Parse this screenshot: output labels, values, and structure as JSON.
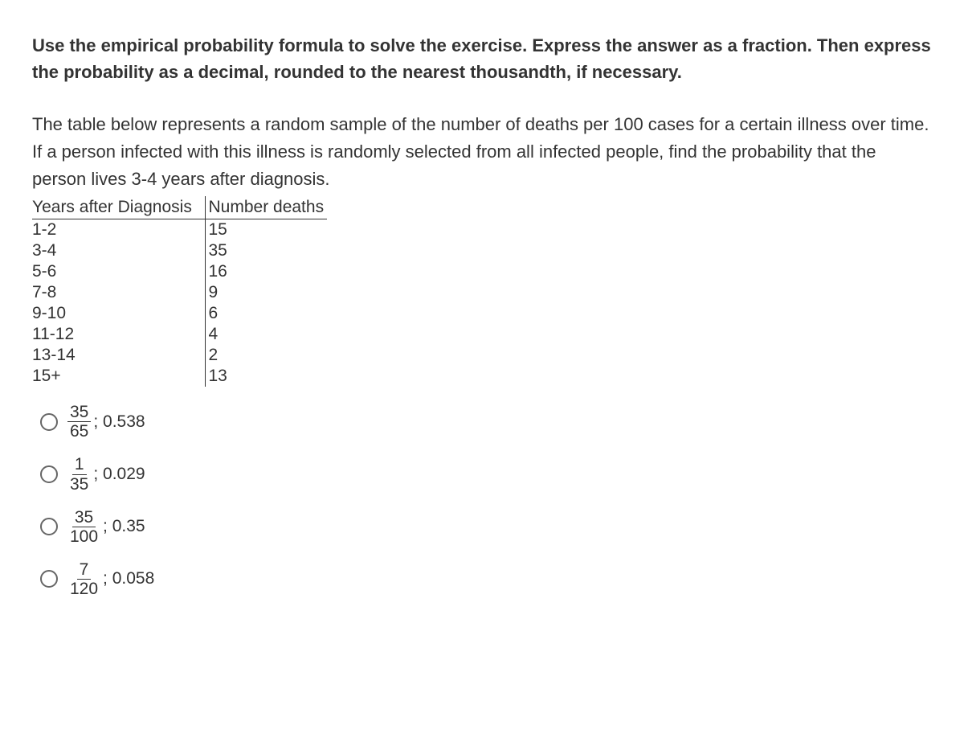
{
  "instructions": "Use the empirical probability formula to solve the exercise. Express the answer as a fraction. Then express the probability as a decimal, rounded to the nearest thousandth, if necessary.",
  "question": "The table below represents a random sample of the number of deaths per 100 cases for a certain illness over time. If a person infected with this illness is randomly selected from all infected people, find the probability that the person lives 3-4 years after diagnosis.",
  "table": {
    "headers": [
      "Years after Diagnosis",
      "Number deaths"
    ],
    "rows": [
      [
        "1-2",
        "15"
      ],
      [
        "3-4",
        "35"
      ],
      [
        "5-6",
        "16"
      ],
      [
        "7-8",
        "9"
      ],
      [
        "9-10",
        "6"
      ],
      [
        "11-12",
        "4"
      ],
      [
        "13-14",
        "2"
      ],
      [
        "15+",
        "13"
      ]
    ]
  },
  "options": [
    {
      "numerator": "35",
      "denominator": "65",
      "decimal": "; 0.538"
    },
    {
      "numerator": "1",
      "denominator": "35",
      "decimal": "; 0.029"
    },
    {
      "numerator": "35",
      "denominator": "100",
      "decimal": "; 0.35"
    },
    {
      "numerator": "7",
      "denominator": "120",
      "decimal": "; 0.058"
    }
  ],
  "colors": {
    "text": "#333333",
    "background": "#ffffff",
    "border": "#333333",
    "radio_border": "#666666"
  }
}
